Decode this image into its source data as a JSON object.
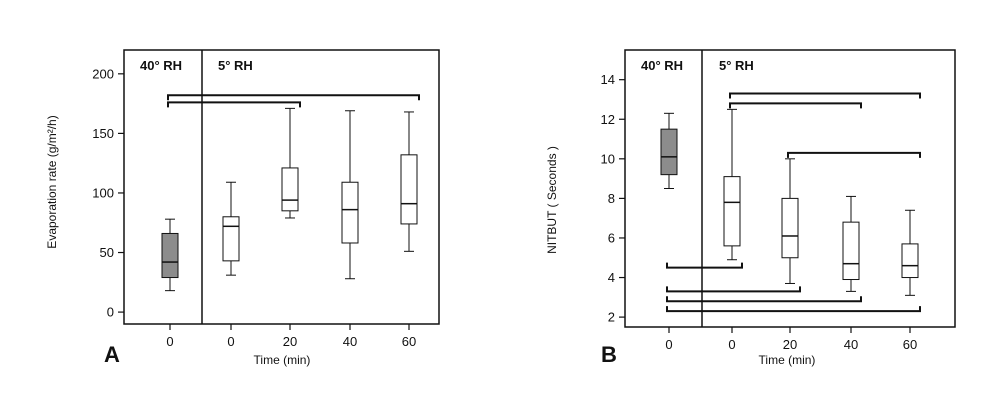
{
  "chart_data": [
    {
      "type": "box",
      "panel_label": "A",
      "ylabel": "Evaporation rate (g/m²/h)",
      "xlabel": "Time (min)",
      "regions": [
        "40° RH",
        "5° RH"
      ],
      "categories": [
        "0",
        "0",
        "20",
        "40",
        "60"
      ],
      "ylim": [
        -10,
        220
      ],
      "yticks": [
        0,
        50,
        100,
        150,
        200
      ],
      "boxes": [
        {
          "min": 18,
          "q1": 29,
          "median": 42,
          "q3": 66,
          "max": 78,
          "shaded": true
        },
        {
          "min": 31,
          "q1": 43,
          "median": 72,
          "q3": 80,
          "max": 109,
          "shaded": false
        },
        {
          "min": 79,
          "q1": 85,
          "median": 94,
          "q3": 121,
          "max": 171,
          "shaded": false
        },
        {
          "min": 28,
          "q1": 58,
          "median": 86,
          "q3": 109,
          "max": 169,
          "shaded": false
        },
        {
          "min": 51,
          "q1": 74,
          "median": 91,
          "q3": 132,
          "max": 168,
          "shaded": false
        }
      ],
      "significance_brackets": [
        {
          "from": 0,
          "to": 4,
          "y": 182
        },
        {
          "from": 0,
          "to": 2,
          "y": 176
        }
      ]
    },
    {
      "type": "box",
      "panel_label": "B",
      "ylabel": "NITBUT ( Seconds )",
      "xlabel": "Time (min)",
      "regions": [
        "40° RH",
        "5° RH"
      ],
      "categories": [
        "0",
        "0",
        "20",
        "40",
        "60"
      ],
      "ylim": [
        1.5,
        15.5
      ],
      "yticks": [
        2,
        4,
        6,
        8,
        10,
        12,
        14
      ],
      "boxes": [
        {
          "min": 8.5,
          "q1": 9.2,
          "median": 10.1,
          "q3": 11.5,
          "max": 12.3,
          "shaded": true
        },
        {
          "min": 4.9,
          "q1": 5.6,
          "median": 7.8,
          "q3": 9.1,
          "max": 12.5,
          "shaded": false
        },
        {
          "min": 3.7,
          "q1": 5.0,
          "median": 6.1,
          "q3": 8.0,
          "max": 10.0,
          "shaded": false
        },
        {
          "min": 3.3,
          "q1": 3.9,
          "median": 4.7,
          "q3": 6.8,
          "max": 8.1,
          "shaded": false
        },
        {
          "min": 3.1,
          "q1": 4.0,
          "median": 4.6,
          "q3": 5.7,
          "max": 7.4,
          "shaded": false
        }
      ],
      "significance_brackets_top": [
        {
          "from": 1,
          "to": 4,
          "y": 13.3
        },
        {
          "from": 1,
          "to": 3,
          "y": 12.8
        },
        {
          "from": 2,
          "to": 4,
          "y": 10.3
        }
      ],
      "significance_brackets_bottom": [
        {
          "from": 0,
          "to": 1,
          "y": 4.5
        },
        {
          "from": 0,
          "to": 2,
          "y": 3.3
        },
        {
          "from": 0,
          "to": 3,
          "y": 2.8
        },
        {
          "from": 0,
          "to": 4,
          "y": 2.3
        }
      ]
    }
  ]
}
